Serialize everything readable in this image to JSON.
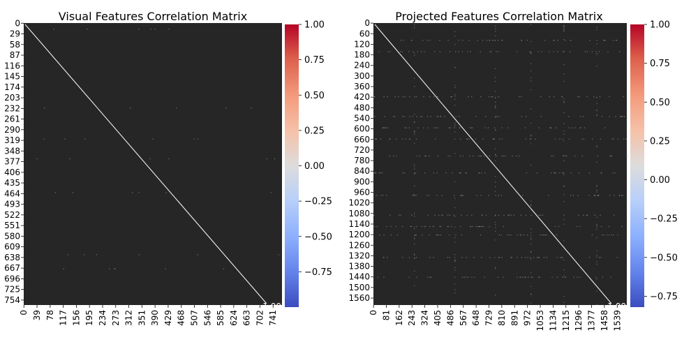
{
  "chart_data": [
    {
      "type": "heatmap",
      "title": "Visual Features Correlation Matrix",
      "xlabel": "",
      "ylabel": "",
      "n": 768,
      "x_ticks": [
        "0",
        "39",
        "78",
        "117",
        "156",
        "195",
        "234",
        "273",
        "312",
        "351",
        "390",
        "429",
        "468",
        "507",
        "546",
        "585",
        "624",
        "663",
        "702",
        "741"
      ],
      "y_ticks": [
        "0",
        "29",
        "58",
        "87",
        "116",
        "145",
        "174",
        "203",
        "232",
        "261",
        "290",
        "319",
        "348",
        "377",
        "406",
        "435",
        "464",
        "493",
        "522",
        "551",
        "580",
        "609",
        "638",
        "667",
        "696",
        "725",
        "754"
      ],
      "annotation": "1.00",
      "colorbar": {
        "min": -1.0,
        "max": 1.0,
        "ticks": [
          "1.00",
          "0.75",
          "0.50",
          "0.25",
          "0.00",
          "−0.25",
          "−0.50",
          "−0.75"
        ],
        "tick_values": [
          1.0,
          0.75,
          0.5,
          0.25,
          0.0,
          -0.25,
          -0.5,
          -0.75
        ]
      }
    },
    {
      "type": "heatmap",
      "title": "Projected Features Correlation Matrix",
      "xlabel": "",
      "ylabel": "",
      "n": 1600,
      "x_ticks": [
        "0",
        "81",
        "162",
        "243",
        "324",
        "405",
        "486",
        "567",
        "648",
        "729",
        "810",
        "891",
        "972",
        "1053",
        "1134",
        "1215",
        "1296",
        "1377",
        "1458",
        "1539"
      ],
      "y_ticks": [
        "0",
        "60",
        "120",
        "180",
        "240",
        "300",
        "360",
        "420",
        "480",
        "540",
        "600",
        "660",
        "720",
        "780",
        "840",
        "900",
        "960",
        "1020",
        "1080",
        "1140",
        "1200",
        "1260",
        "1320",
        "1380",
        "1440",
        "1500",
        "1560"
      ],
      "annotation": "1.00",
      "colorbar": {
        "min": -0.82,
        "max": 1.0,
        "ticks": [
          "1.00",
          "0.75",
          "0.50",
          "0.25",
          "0.00",
          "−0.25",
          "−0.50",
          "−0.75"
        ],
        "tick_values": [
          1.0,
          0.75,
          0.5,
          0.25,
          0.0,
          -0.25,
          -0.5,
          -0.75
        ]
      }
    }
  ],
  "colors": {
    "cell": "#262626",
    "diagonal": "#f2f2f2",
    "cbar_top": "#b40426",
    "cbar_mid": "#dddcdc",
    "cbar_bottom": "#3b4cc0"
  }
}
